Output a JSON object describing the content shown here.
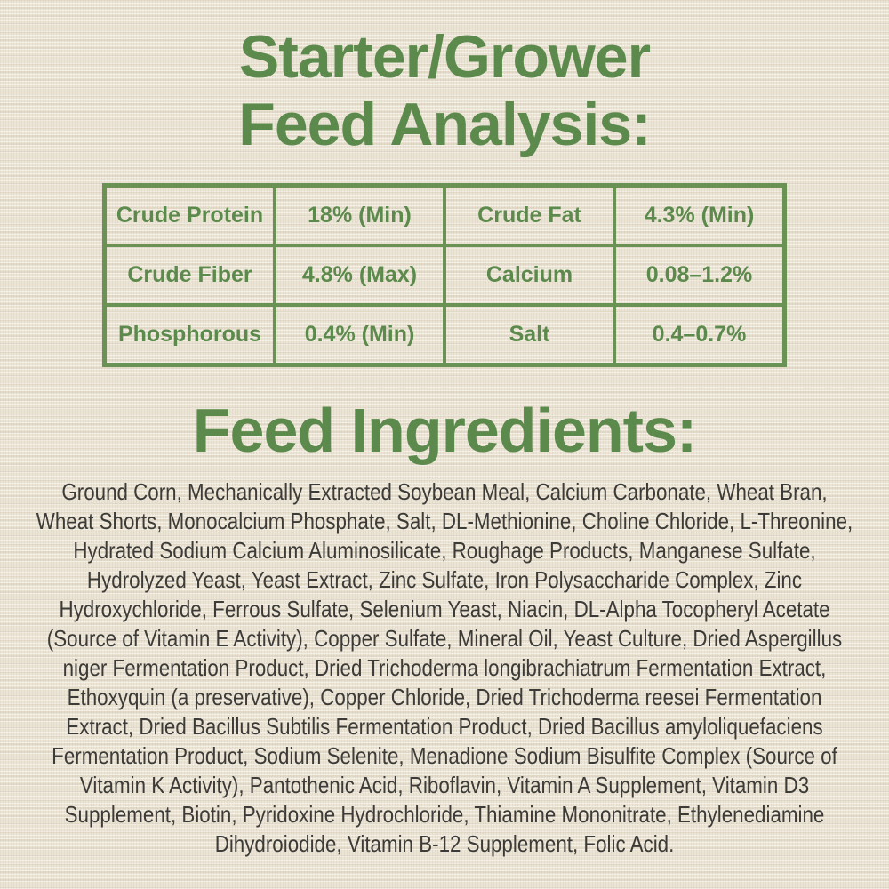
{
  "header": {
    "line1": "Starter/Grower",
    "line2": "Feed Analysis:"
  },
  "analysis_table": {
    "rows": [
      [
        "Crude Protein",
        "18% (Min)",
        "Crude Fat",
        "4.3% (Min)"
      ],
      [
        "Crude Fiber",
        "4.8% (Max)",
        "Calcium",
        "0.08–1.2%"
      ],
      [
        "Phosphorous",
        "0.4% (Min)",
        "Salt",
        "0.4–0.7%"
      ]
    ]
  },
  "ingredients": {
    "heading": "Feed Ingredients:",
    "text": "Ground Corn, Mechanically Extracted Soybean Meal, Calcium Carbonate, Wheat Bran, Wheat Shorts, Monocalcium Phosphate, Salt, DL-Methionine, Choline Chloride, L-Threonine, Hydrated Sodium Calcium Aluminosilicate, Roughage Products, Manganese Sulfate, Hydrolyzed Yeast, Yeast Extract, Zinc Sulfate, Iron Polysaccharide Complex, Zinc Hydroxychloride, Ferrous Sulfate, Selenium Yeast, Niacin, DL-Alpha Tocopheryl Acetate (Source of Vitamin E Activity), Copper Sulfate, Mineral Oil, Yeast Culture, Dried Aspergillus niger Fermentation Product, Dried Trichoderma longibrachiatrum Fermentation Extract, Ethoxyquin (a preservative), Copper Chloride, Dried Trichoderma reesei Fermentation Extract, Dried Bacillus Subtilis Fermentation Product, Dried Bacillus amyloliquefaciens Fermentation Product, Sodium Selenite, Menadione Sodium Bisulfite Complex (Source of Vitamin K Activity), Pantothenic Acid, Riboflavin, Vitamin A Supplement, Vitamin D3 Supplement, Biotin, Pyridoxine Hydrochloride, Thiamine Mononitrate, Ethylenediamine Dihydroiodide, Vitamin B-12 Supplement, Folic Acid."
  },
  "colors": {
    "accent_green": "#5c8a4c",
    "border_green": "#6a9254",
    "body_text": "#3d3b38",
    "background_cream": "#ece5d6"
  }
}
